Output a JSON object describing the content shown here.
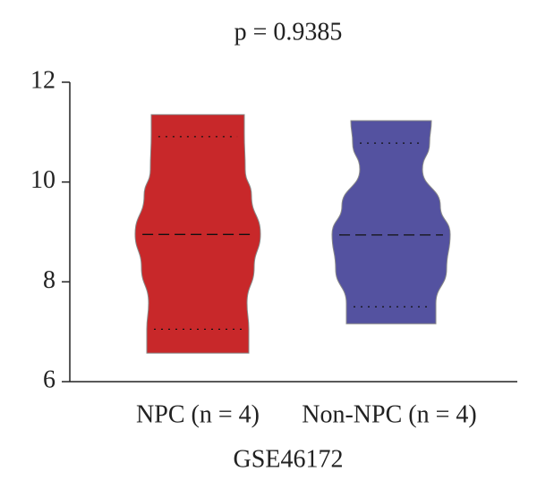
{
  "chart_data": {
    "type": "violin",
    "title": "p = 0.9385",
    "xlabel": "GSE46172",
    "categories": [
      "NPC (n = 4)",
      "Non-NPC (n = 4)"
    ],
    "violins": [
      {
        "color": "#c8282a",
        "min": 6.57,
        "q1": 7.05,
        "median": 8.95,
        "q3": 10.91,
        "max": 11.35
      },
      {
        "color": "#5452a0",
        "min": 7.16,
        "q1": 7.5,
        "median": 8.94,
        "q3": 10.78,
        "max": 11.23
      }
    ],
    "ylim": [
      6,
      12
    ],
    "yticks": [
      6,
      8,
      10,
      12
    ]
  }
}
